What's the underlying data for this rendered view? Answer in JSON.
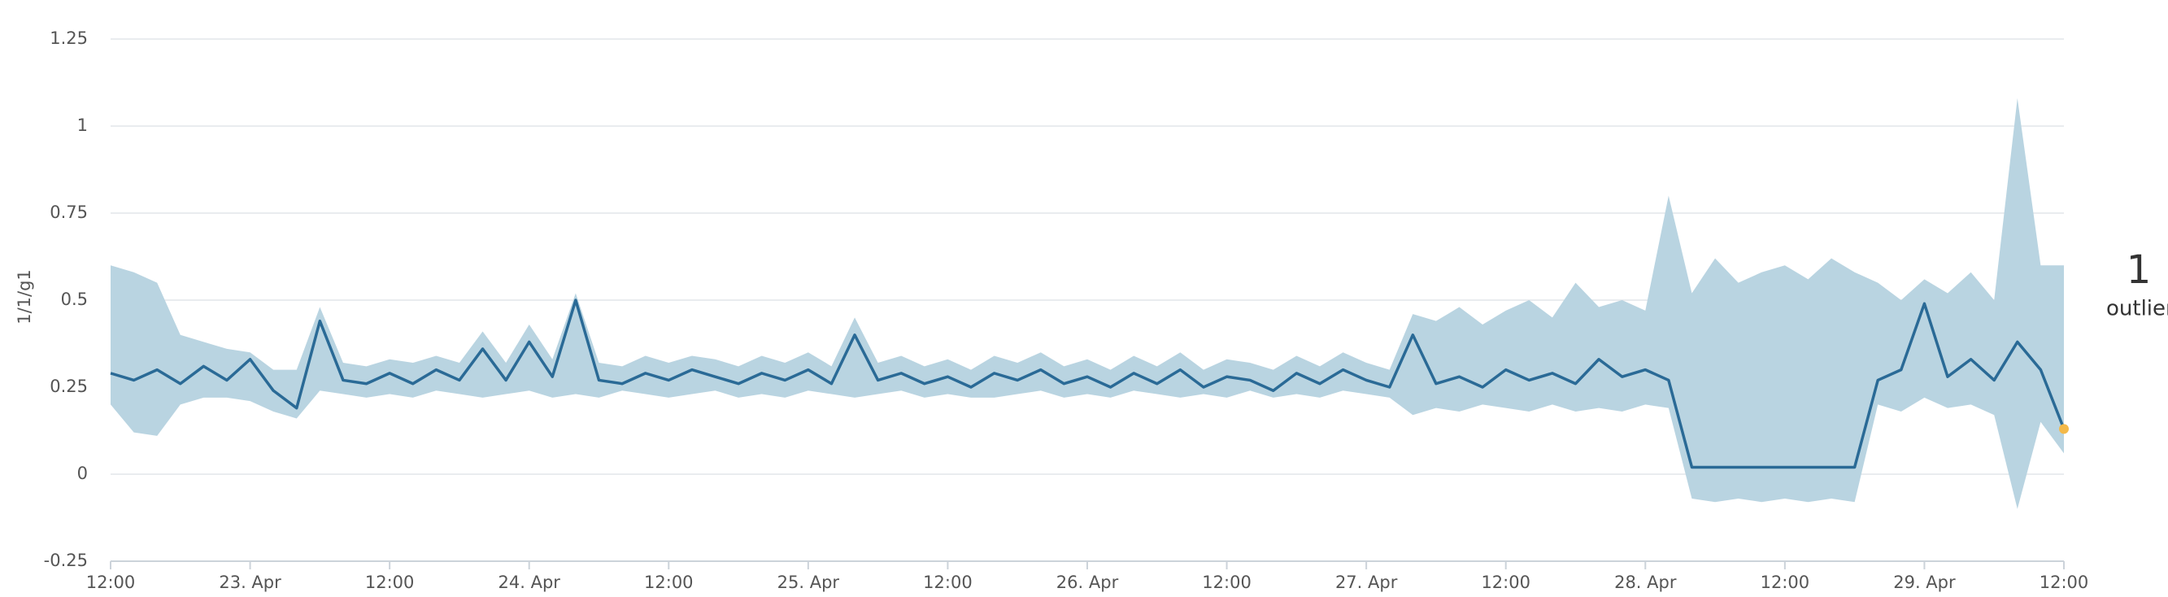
{
  "chart_data": {
    "type": "line",
    "y_label": "1/1/g1",
    "x": [
      0,
      2,
      4,
      6,
      8,
      10,
      12,
      14,
      16,
      18,
      20,
      22,
      24,
      26,
      28,
      30,
      32,
      34,
      36,
      38,
      40,
      42,
      44,
      46,
      48,
      50,
      52,
      54,
      56,
      58,
      60,
      62,
      64,
      66,
      68,
      70,
      72,
      74,
      76,
      78,
      80,
      82,
      84,
      86,
      88,
      90,
      92,
      94,
      96,
      98,
      100,
      102,
      104,
      106,
      108,
      110,
      112,
      114,
      116,
      118,
      120,
      122,
      124,
      126,
      128,
      130,
      132,
      134,
      136,
      138,
      140,
      142,
      144,
      146,
      148,
      150,
      152,
      154,
      156,
      158,
      160,
      162,
      164,
      166,
      168
    ],
    "series": [
      {
        "color": "#2a6a96",
        "values": [
          0.29,
          0.27,
          0.3,
          0.26,
          0.31,
          0.27,
          0.33,
          0.24,
          0.19,
          0.44,
          0.27,
          0.26,
          0.29,
          0.26,
          0.3,
          0.27,
          0.36,
          0.27,
          0.38,
          0.28,
          0.5,
          0.27,
          0.26,
          0.29,
          0.27,
          0.3,
          0.28,
          0.26,
          0.29,
          0.27,
          0.3,
          0.26,
          0.4,
          0.27,
          0.29,
          0.26,
          0.28,
          0.25,
          0.29,
          0.27,
          0.3,
          0.26,
          0.28,
          0.25,
          0.29,
          0.26,
          0.3,
          0.25,
          0.28,
          0.27,
          0.24,
          0.29,
          0.26,
          0.3,
          0.27,
          0.25,
          0.4,
          0.26,
          0.28,
          0.25,
          0.3,
          0.27,
          0.29,
          0.26,
          0.33,
          0.28,
          0.3,
          0.27,
          0.02,
          0.02,
          0.02,
          0.02,
          0.02,
          0.02,
          0.02,
          0.02,
          0.27,
          0.3,
          0.49,
          0.28,
          0.33,
          0.27,
          0.38,
          0.3,
          0.13
        ]
      }
    ],
    "band": {
      "color": "#b9d4e1",
      "low": [
        0.2,
        0.12,
        0.11,
        0.2,
        0.22,
        0.22,
        0.21,
        0.18,
        0.16,
        0.24,
        0.23,
        0.22,
        0.23,
        0.22,
        0.24,
        0.23,
        0.22,
        0.23,
        0.24,
        0.22,
        0.23,
        0.22,
        0.24,
        0.23,
        0.22,
        0.23,
        0.24,
        0.22,
        0.23,
        0.22,
        0.24,
        0.23,
        0.22,
        0.23,
        0.24,
        0.22,
        0.23,
        0.22,
        0.22,
        0.23,
        0.24,
        0.22,
        0.23,
        0.22,
        0.24,
        0.23,
        0.22,
        0.23,
        0.22,
        0.24,
        0.22,
        0.23,
        0.22,
        0.24,
        0.23,
        0.22,
        0.17,
        0.19,
        0.18,
        0.2,
        0.19,
        0.18,
        0.2,
        0.18,
        0.19,
        0.18,
        0.2,
        0.19,
        -0.07,
        -0.08,
        -0.07,
        -0.08,
        -0.07,
        -0.08,
        -0.07,
        -0.08,
        0.2,
        0.18,
        0.22,
        0.19,
        0.2,
        0.17,
        -0.1,
        0.15,
        0.06
      ],
      "high": [
        0.6,
        0.58,
        0.55,
        0.4,
        0.38,
        0.36,
        0.35,
        0.3,
        0.3,
        0.48,
        0.32,
        0.31,
        0.33,
        0.32,
        0.34,
        0.32,
        0.41,
        0.32,
        0.43,
        0.33,
        0.52,
        0.32,
        0.31,
        0.34,
        0.32,
        0.34,
        0.33,
        0.31,
        0.34,
        0.32,
        0.35,
        0.31,
        0.45,
        0.32,
        0.34,
        0.31,
        0.33,
        0.3,
        0.34,
        0.32,
        0.35,
        0.31,
        0.33,
        0.3,
        0.34,
        0.31,
        0.35,
        0.3,
        0.33,
        0.32,
        0.3,
        0.34,
        0.31,
        0.35,
        0.32,
        0.3,
        0.46,
        0.44,
        0.48,
        0.43,
        0.47,
        0.5,
        0.45,
        0.55,
        0.48,
        0.5,
        0.47,
        0.8,
        0.52,
        0.62,
        0.55,
        0.58,
        0.6,
        0.56,
        0.62,
        0.58,
        0.55,
        0.5,
        0.56,
        0.52,
        0.58,
        0.5,
        1.08,
        0.6,
        0.6
      ]
    },
    "outlier": {
      "count": 1,
      "label": "outlier",
      "color": "#f3b94a"
    },
    "xlim": [
      0,
      168
    ],
    "xticks": [
      {
        "value": 0,
        "label": "12:00"
      },
      {
        "value": 12,
        "label": "23. Apr"
      },
      {
        "value": 24,
        "label": "12:00"
      },
      {
        "value": 36,
        "label": "24. Apr"
      },
      {
        "value": 48,
        "label": "12:00"
      },
      {
        "value": 60,
        "label": "25. Apr"
      },
      {
        "value": 72,
        "label": "12:00"
      },
      {
        "value": 84,
        "label": "26. Apr"
      },
      {
        "value": 96,
        "label": "12:00"
      },
      {
        "value": 108,
        "label": "27. Apr"
      },
      {
        "value": 120,
        "label": "12:00"
      },
      {
        "value": 132,
        "label": "28. Apr"
      },
      {
        "value": 144,
        "label": "12:00"
      },
      {
        "value": 156,
        "label": "29. Apr"
      },
      {
        "value": 168,
        "label": "12:00"
      }
    ],
    "ylim": [
      -0.25,
      1.25
    ],
    "yticks": [
      -0.25,
      0,
      0.25,
      0.5,
      0.75,
      1,
      1.25
    ],
    "grid": true
  }
}
